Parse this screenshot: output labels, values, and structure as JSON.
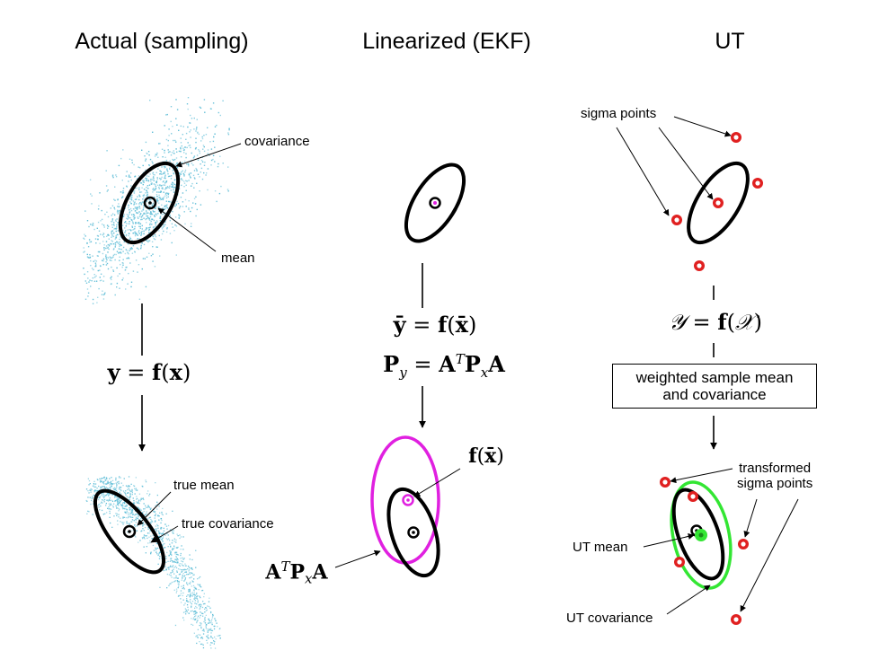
{
  "titles": {
    "actual": "Actual (sampling)",
    "linearized": "Linearized (EKF)",
    "ut": "UT"
  },
  "actual": {
    "covariance_label": "covariance",
    "mean_label": "mean",
    "true_mean_label": "true mean",
    "true_covariance_label": "true covariance"
  },
  "ekf": {
    "fx_label": "f(x̄)"
  },
  "ut": {
    "sigma_points_label": "sigma points",
    "box_line1": "weighted sample mean",
    "box_line2": "and covariance",
    "transformed_line1": "transformed",
    "transformed_line2": "sigma points",
    "ut_mean_label": "UT mean",
    "ut_covariance_label": "UT covariance"
  },
  "colors": {
    "samples": "#5bbcd6",
    "ekf_covariance": "#e020e0",
    "sigma_point": "#e02020",
    "ut_covariance": "#33e633",
    "line": "#000000"
  }
}
